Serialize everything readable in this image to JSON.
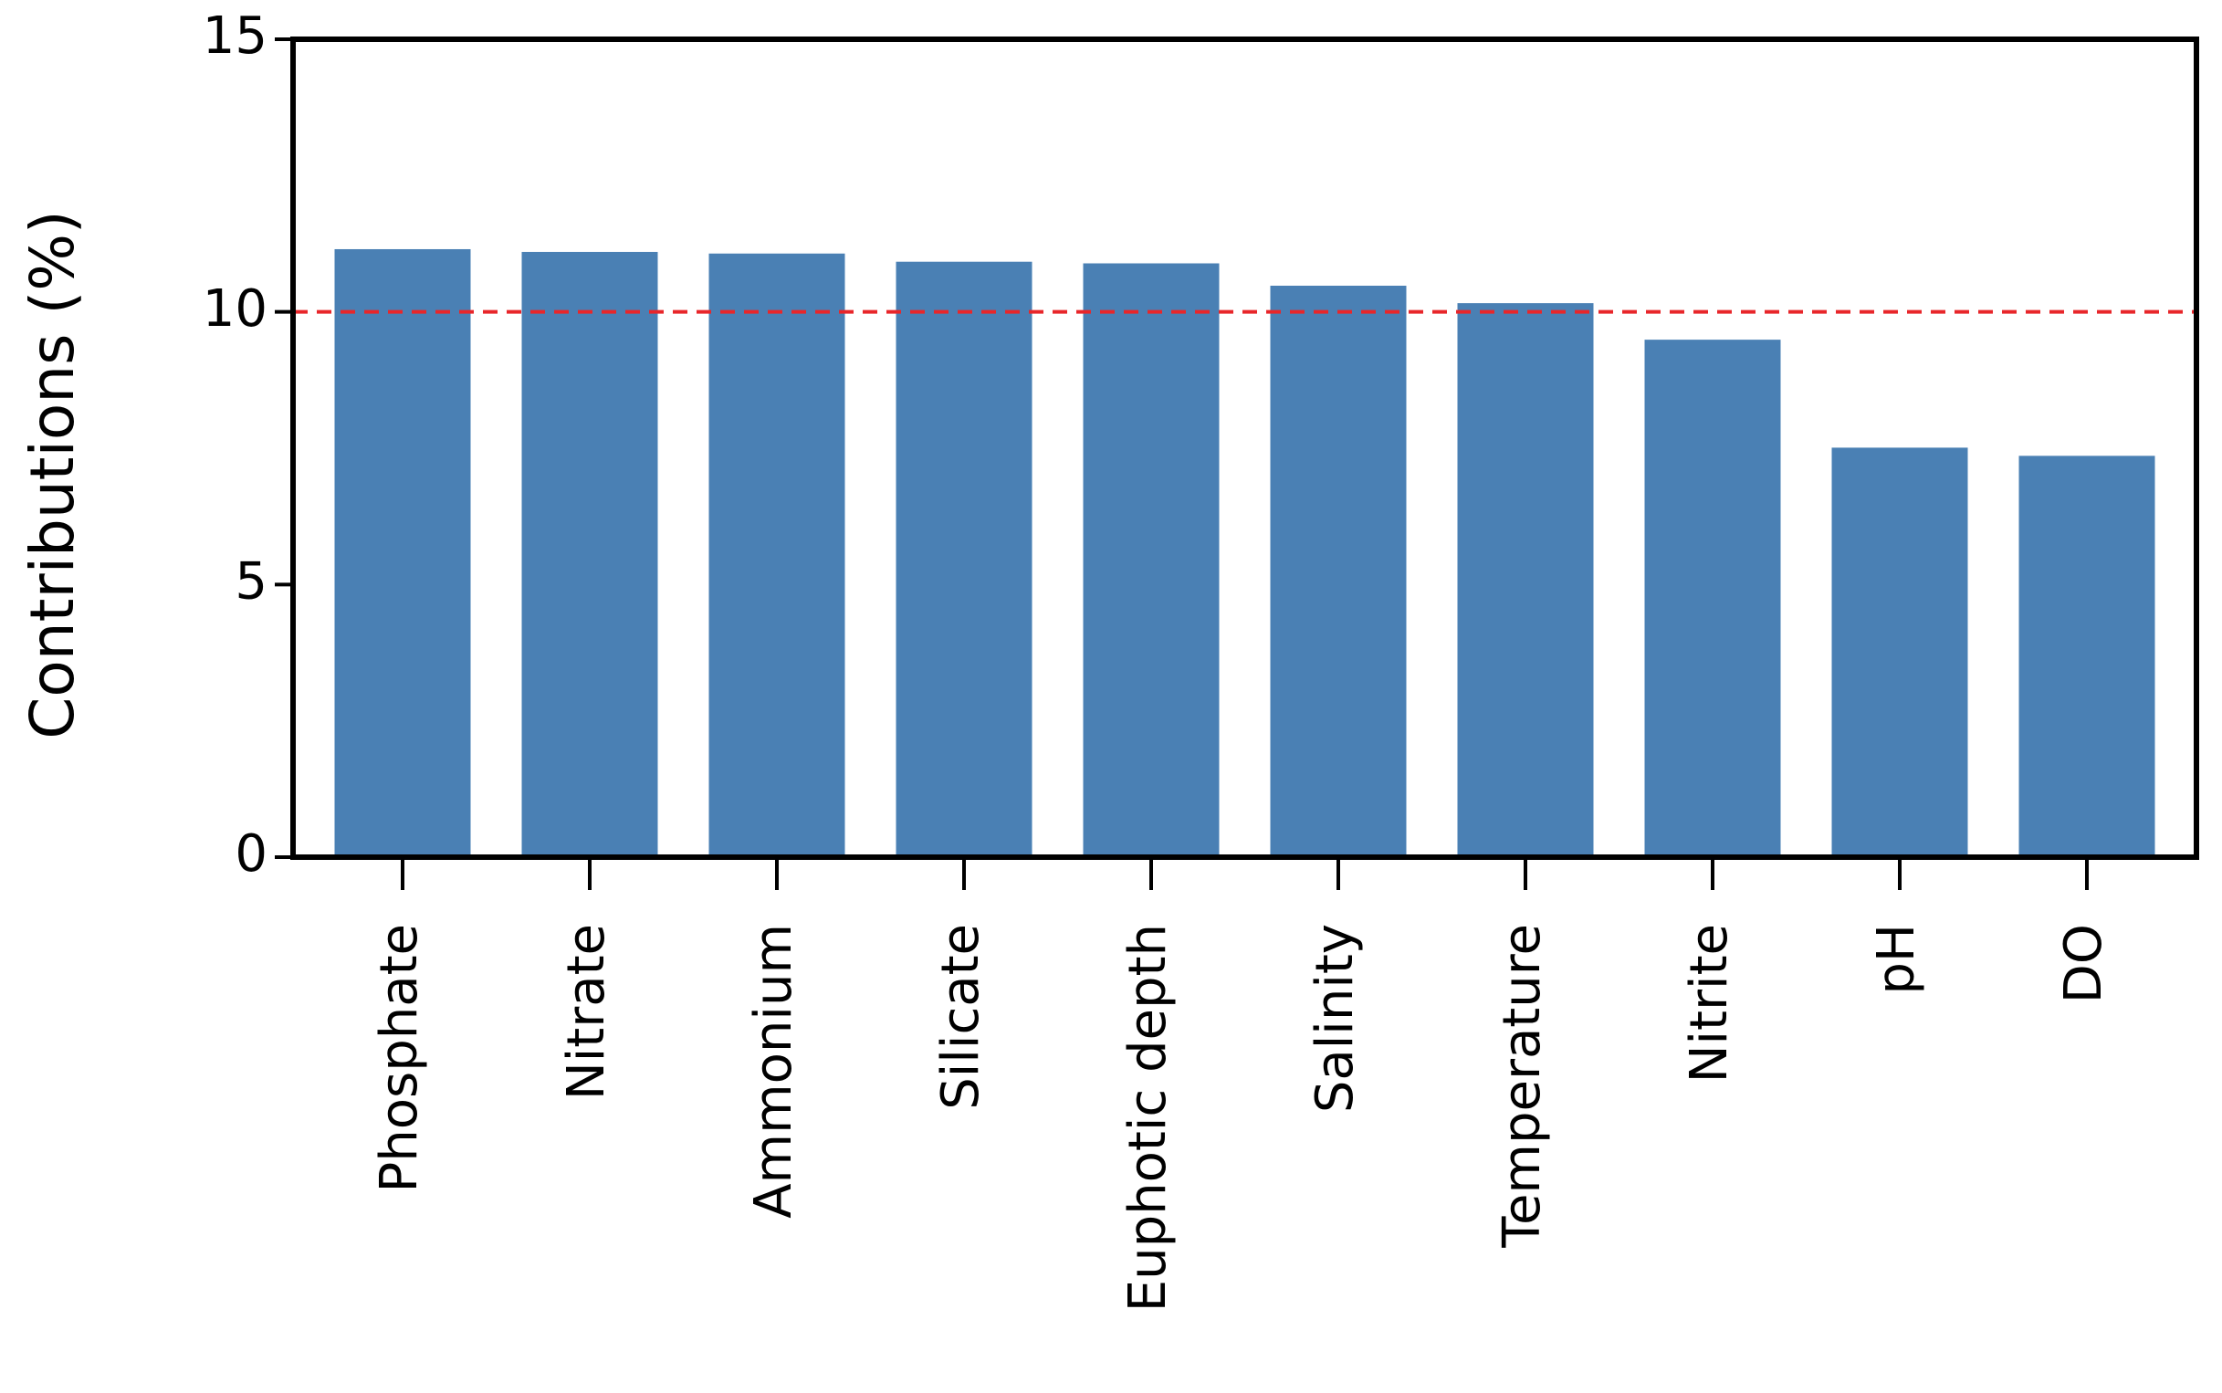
{
  "chart_data": {
    "type": "bar",
    "y_label": "Contributions (%)",
    "categories": [
      "Phosphate",
      "Nitrate",
      "Ammonium",
      "Silicate",
      "Euphotic depth",
      "Salinity",
      "Temperature",
      "Nitrite",
      "pH",
      "DO"
    ],
    "values": [
      11.15,
      11.1,
      11.07,
      10.92,
      10.89,
      10.48,
      10.16,
      9.49,
      7.51,
      7.36
    ],
    "color": "#4a80b4",
    "ylim": [
      0,
      15
    ],
    "yticks": [
      0,
      5,
      10,
      15
    ],
    "reference_line": {
      "value": 10,
      "color": "#e8262a"
    }
  }
}
